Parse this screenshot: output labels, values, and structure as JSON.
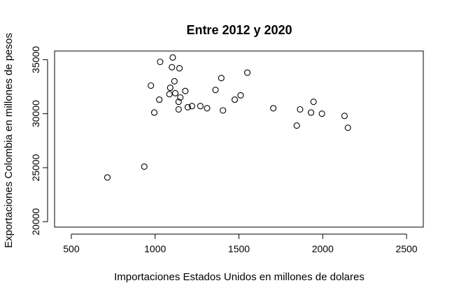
{
  "chart_data": {
    "type": "scatter",
    "title": "Entre 2012 y 2020",
    "xlabel": "Importaciones Estados Unidos en millones de dolares",
    "ylabel": "Exportaciones Colombia en millones de pesos",
    "xlim": [
      400,
      2600
    ],
    "ylim": [
      19500,
      35800
    ],
    "xticks": [
      500,
      1000,
      1500,
      2000,
      2500
    ],
    "yticks": [
      20000,
      25000,
      30000,
      35000
    ],
    "grid": false,
    "x": [
      715,
      935,
      975,
      995,
      1025,
      1030,
      1085,
      1090,
      1100,
      1105,
      1115,
      1120,
      1140,
      1140,
      1145,
      1150,
      1180,
      1195,
      1220,
      1270,
      1310,
      1360,
      1395,
      1405,
      1475,
      1510,
      1550,
      1705,
      1845,
      1865,
      1930,
      1945,
      1995,
      2130,
      2150
    ],
    "y": [
      24100,
      25100,
      32600,
      30100,
      31300,
      34800,
      31800,
      32400,
      34300,
      35200,
      33000,
      31900,
      30400,
      31100,
      34200,
      31500,
      32100,
      30600,
      30700,
      30700,
      30500,
      32200,
      33300,
      30300,
      31300,
      31700,
      33800,
      30500,
      28900,
      30400,
      30100,
      31100,
      30000,
      29800,
      28700
    ]
  }
}
